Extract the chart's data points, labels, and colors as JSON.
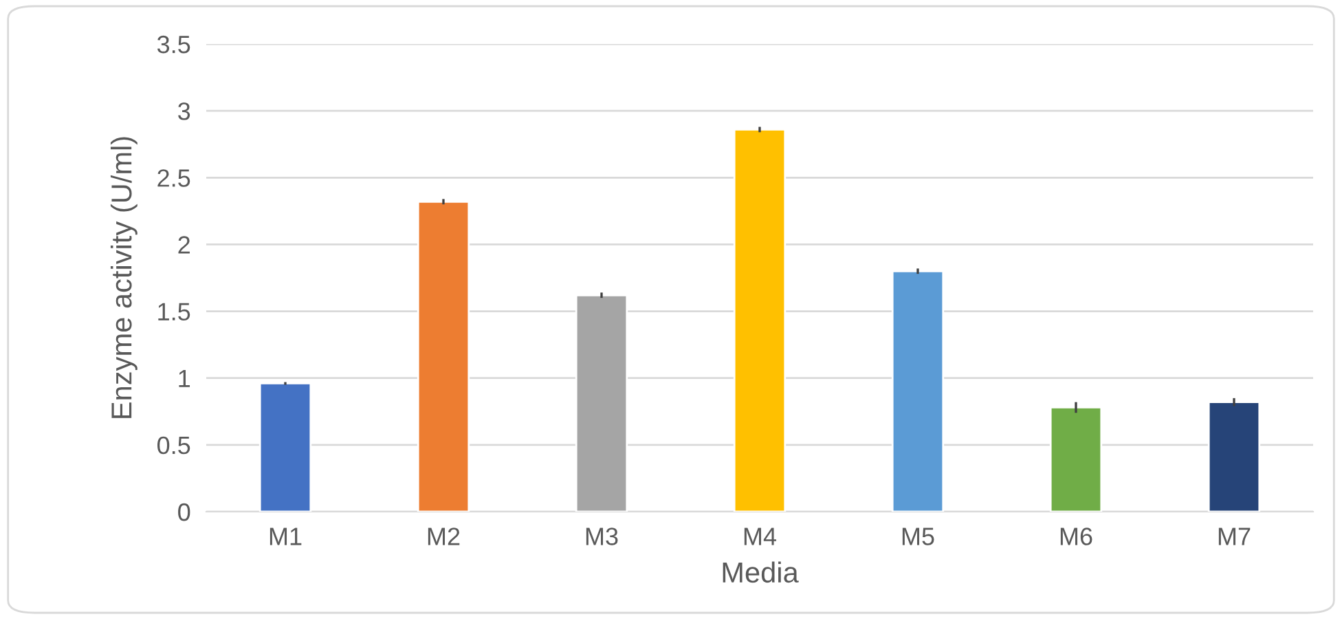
{
  "chart_data": {
    "type": "bar",
    "xlabel": "Media",
    "ylabel": "Enzyme activity (U/ml)",
    "categories": [
      "M1",
      "M2",
      "M3",
      "M4",
      "M5",
      "M6",
      "M7"
    ],
    "values": [
      0.96,
      2.32,
      1.62,
      2.86,
      1.8,
      0.78,
      0.82
    ],
    "errors": [
      0.01,
      0.02,
      0.02,
      0.02,
      0.02,
      0.04,
      0.03
    ],
    "colors": [
      "#4472c4",
      "#ed7d31",
      "#a5a5a5",
      "#ffc000",
      "#5b9bd5",
      "#70ad47",
      "#264478"
    ],
    "ylim": [
      0,
      3.5
    ],
    "yticks": [
      0,
      0.5,
      1,
      1.5,
      2,
      2.5,
      3,
      3.5
    ],
    "grid": "y",
    "legend": false
  }
}
